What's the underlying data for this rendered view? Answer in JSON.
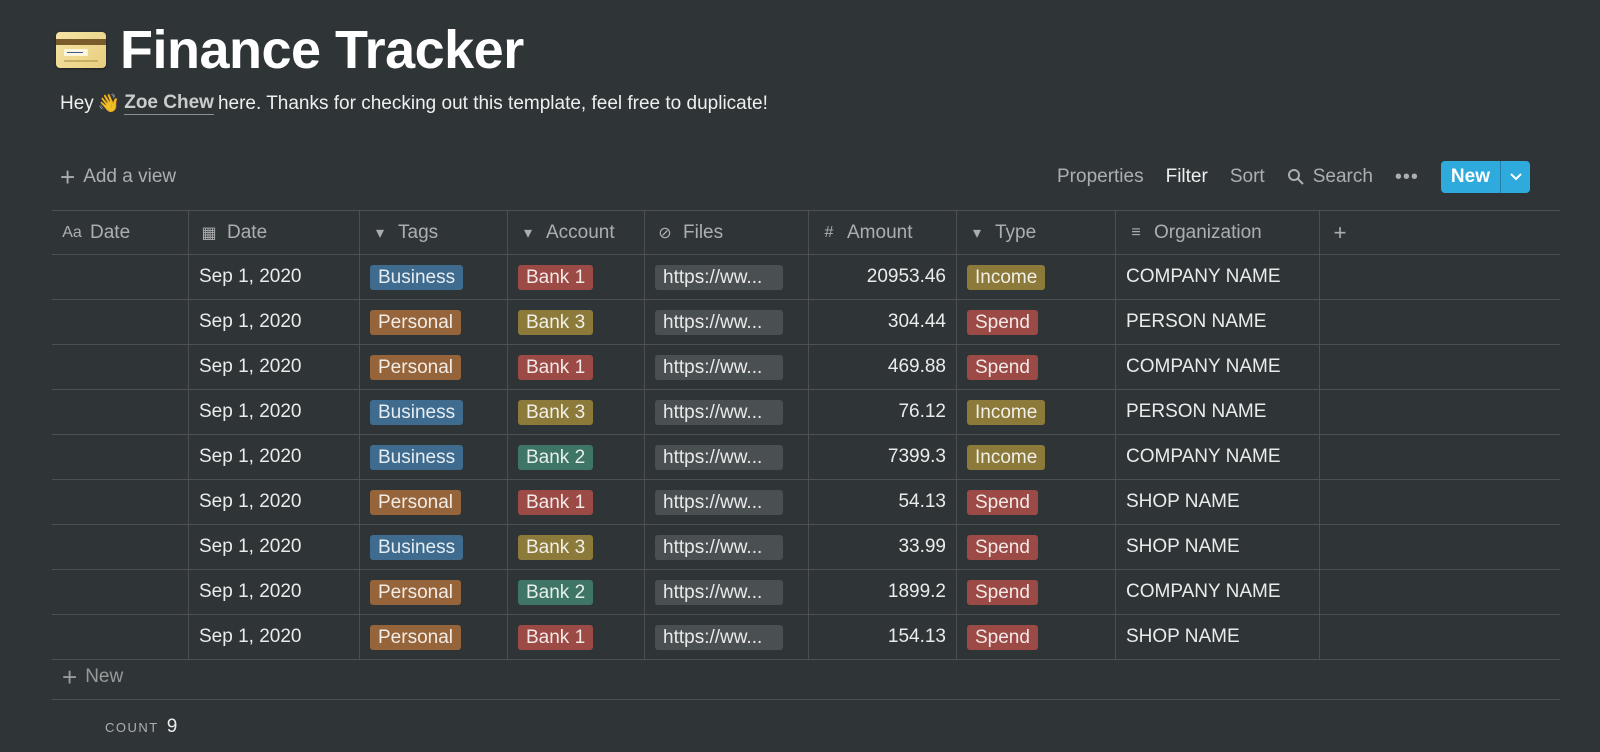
{
  "page": {
    "icon": "credit-card-icon",
    "title": "Finance Tracker",
    "subtitle_prefix": "Hey",
    "wave": "👋",
    "mention": "Zoe Chew",
    "subtitle_suffix": "here. Thanks for checking out this template, feel free to duplicate!"
  },
  "toolbar": {
    "add_view": "Add a view",
    "properties": "Properties",
    "filter": "Filter",
    "sort": "Sort",
    "search": "Search",
    "more": "•••",
    "new": "New"
  },
  "columns": [
    {
      "label": "Date",
      "icon": "title-aa-icon",
      "glyph": "Aa"
    },
    {
      "label": "Date",
      "icon": "calendar-icon",
      "glyph": "▦"
    },
    {
      "label": "Tags",
      "icon": "select-icon",
      "glyph": "▾"
    },
    {
      "label": "Account",
      "icon": "select-icon",
      "glyph": "▾"
    },
    {
      "label": "Files",
      "icon": "paperclip-icon",
      "glyph": "⊘"
    },
    {
      "label": "Amount",
      "icon": "number-icon",
      "glyph": "#"
    },
    {
      "label": "Type",
      "icon": "select-icon",
      "glyph": "▾"
    },
    {
      "label": "Organization",
      "icon": "text-icon",
      "glyph": "≡"
    },
    {
      "label": "+",
      "icon": "add-column-icon",
      "glyph": "+"
    }
  ],
  "rows": [
    {
      "name": "",
      "date": "Sep 1, 2020",
      "tag": "Business",
      "tag_color": "#3e6b8e",
      "account": "Bank 1",
      "account_color": "#9b4a45",
      "file": "https://ww...",
      "amount": "20953.46",
      "type": "Income",
      "type_color": "#8c7a3b",
      "org": "COMPANY NAME"
    },
    {
      "name": "",
      "date": "Sep 1, 2020",
      "tag": "Personal",
      "tag_color": "#95643a",
      "account": "Bank 3",
      "account_color": "#8c7a3b",
      "file": "https://ww...",
      "amount": "304.44",
      "type": "Spend",
      "type_color": "#9b4a45",
      "org": "PERSON NAME"
    },
    {
      "name": "",
      "date": "Sep 1, 2020",
      "tag": "Personal",
      "tag_color": "#95643a",
      "account": "Bank 1",
      "account_color": "#9b4a45",
      "file": "https://ww...",
      "amount": "469.88",
      "type": "Spend",
      "type_color": "#9b4a45",
      "org": "COMPANY NAME"
    },
    {
      "name": "",
      "date": "Sep 1, 2020",
      "tag": "Business",
      "tag_color": "#3e6b8e",
      "account": "Bank 3",
      "account_color": "#8c7a3b",
      "file": "https://ww...",
      "amount": "76.12",
      "type": "Income",
      "type_color": "#8c7a3b",
      "org": "PERSON NAME"
    },
    {
      "name": "",
      "date": "Sep 1, 2020",
      "tag": "Business",
      "tag_color": "#3e6b8e",
      "account": "Bank 2",
      "account_color": "#3f7566",
      "file": "https://ww...",
      "amount": "7399.3",
      "type": "Income",
      "type_color": "#8c7a3b",
      "org": "COMPANY NAME"
    },
    {
      "name": "",
      "date": "Sep 1, 2020",
      "tag": "Personal",
      "tag_color": "#95643a",
      "account": "Bank 1",
      "account_color": "#9b4a45",
      "file": "https://ww...",
      "amount": "54.13",
      "type": "Spend",
      "type_color": "#9b4a45",
      "org": "SHOP NAME"
    },
    {
      "name": "",
      "date": "Sep 1, 2020",
      "tag": "Business",
      "tag_color": "#3e6b8e",
      "account": "Bank 3",
      "account_color": "#8c7a3b",
      "file": "https://ww...",
      "amount": "33.99",
      "type": "Spend",
      "type_color": "#9b4a45",
      "org": "SHOP NAME"
    },
    {
      "name": "",
      "date": "Sep 1, 2020",
      "tag": "Personal",
      "tag_color": "#95643a",
      "account": "Bank 2",
      "account_color": "#3f7566",
      "file": "https://ww...",
      "amount": "1899.2",
      "type": "Spend",
      "type_color": "#9b4a45",
      "org": "COMPANY NAME"
    },
    {
      "name": "",
      "date": "Sep 1, 2020",
      "tag": "Personal",
      "tag_color": "#95643a",
      "account": "Bank 1",
      "account_color": "#9b4a45",
      "file": "https://ww...",
      "amount": "154.13",
      "type": "Spend",
      "type_color": "#9b4a45",
      "org": "SHOP NAME"
    }
  ],
  "footer": {
    "new_row": "New",
    "count_label": "COUNT",
    "count_value": "9"
  },
  "colors": {
    "background": "#2f3437",
    "accent": "#2eaadc"
  }
}
